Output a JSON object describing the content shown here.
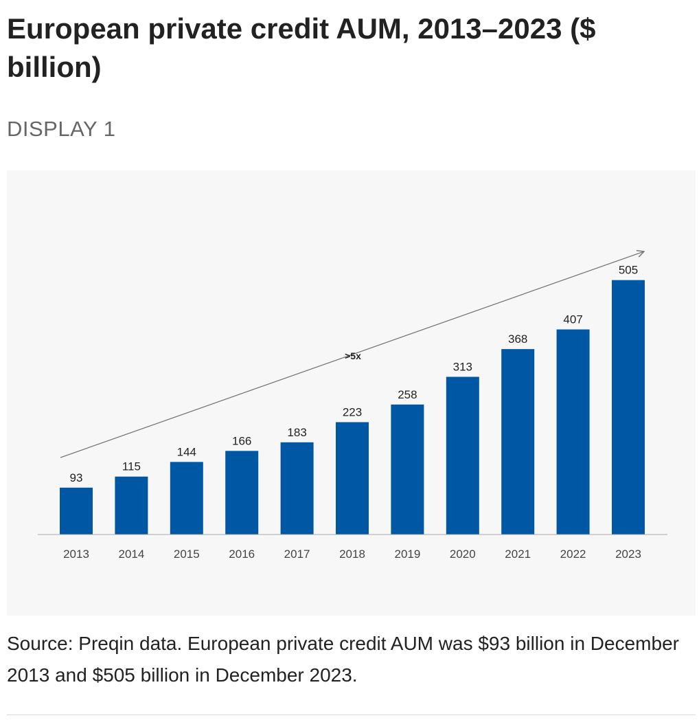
{
  "header": {
    "title": "European private credit AUM, 2013–2023 ($ billion)",
    "display_label": "DISPLAY 1"
  },
  "chart_data": {
    "type": "bar",
    "categories": [
      "2013",
      "2014",
      "2015",
      "2016",
      "2017",
      "2018",
      "2019",
      "2020",
      "2021",
      "2022",
      "2023"
    ],
    "values": [
      93,
      115,
      144,
      166,
      183,
      223,
      258,
      313,
      368,
      407,
      505
    ],
    "ylim": [
      0,
      600
    ],
    "grid": false,
    "legend": "none",
    "bar_color": "#0057a3",
    "annotations": [
      {
        "text": ">5x",
        "type": "trend-arrow",
        "from": "2013",
        "to": "2023"
      }
    ]
  },
  "footer": {
    "source": "Source: Preqin data. European private credit AUM was $93 billion in December 2013 and $505 billion in December 2023."
  }
}
